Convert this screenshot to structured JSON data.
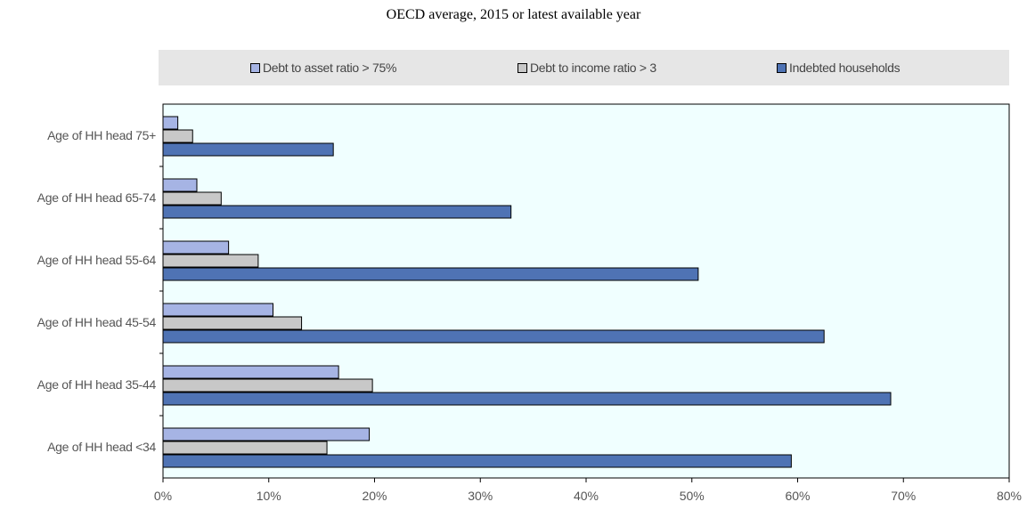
{
  "chart_data": {
    "type": "bar",
    "orientation": "horizontal",
    "title": "OECD average, 2015 or latest available year",
    "categories": [
      "Age of HH head 75+",
      "Age of HH head 65-74",
      "Age of HH head 55-64",
      "Age of HH head 45-54",
      "Age of HH head 35-44",
      "Age of HH head <34"
    ],
    "series": [
      {
        "name": "Debt to asset ratio > 75%",
        "color": "#a6b4e4",
        "values": [
          1.4,
          3.2,
          6.2,
          10.4,
          16.6,
          19.5
        ]
      },
      {
        "name": "Debt to income ratio > 3",
        "color": "#c8c8c8",
        "values": [
          2.8,
          5.5,
          9.0,
          13.1,
          19.8,
          15.5
        ]
      },
      {
        "name": "Indebted households",
        "color": "#4f73b4",
        "values": [
          16.1,
          32.9,
          50.6,
          62.5,
          68.8,
          59.4
        ]
      }
    ],
    "xlim": [
      0,
      80
    ],
    "xticks": [
      "0%",
      "10%",
      "20%",
      "30%",
      "40%",
      "50%",
      "60%",
      "70%",
      "80%"
    ],
    "xlabel": "",
    "ylabel": "",
    "legend_position": "top",
    "plot_background": "#f0ffff",
    "grid": false
  }
}
